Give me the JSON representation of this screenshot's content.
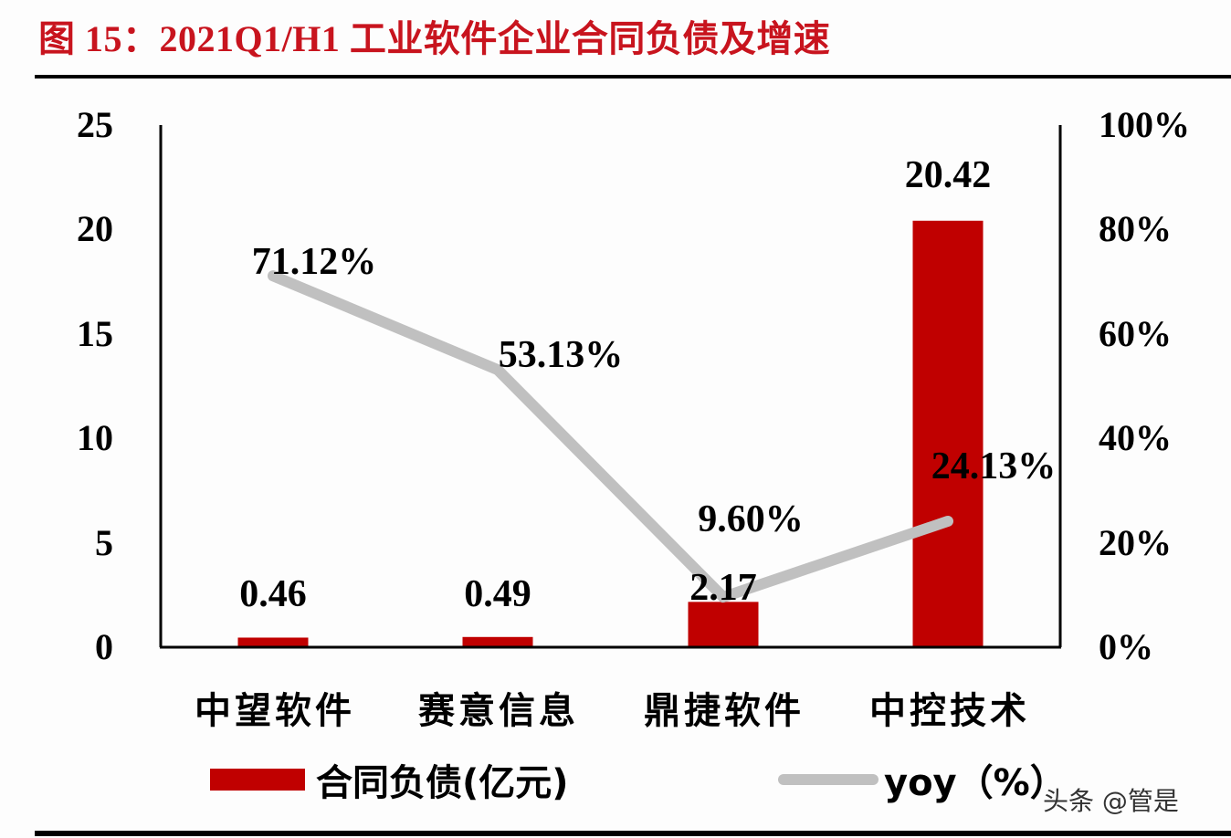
{
  "title": "图 15：2021Q1/H1 工业软件企业合同负债及增速",
  "colors": {
    "title": "#c8141e",
    "bar": "#c00000",
    "line": "#c0c0c0",
    "axis": "#000000"
  },
  "axes": {
    "left_ticks": [
      "0",
      "5",
      "10",
      "15",
      "20",
      "25"
    ],
    "right_ticks": [
      "0%",
      "20%",
      "40%",
      "60%",
      "80%",
      "100%"
    ]
  },
  "categories": [
    "中望软件",
    "赛意信息",
    "鼎捷软件",
    "中控技术"
  ],
  "bar_labels": [
    "0.46",
    "0.49",
    "2.17",
    "20.42"
  ],
  "line_labels": [
    "71.12%",
    "53.13%",
    "9.60%",
    "24.13%"
  ],
  "legend": {
    "bar": "合同负债(亿元)",
    "line": "yoy（%）"
  },
  "watermark": "头条 @管是",
  "chart_data": {
    "type": "bar",
    "title": "图 15：2021Q1/H1 工业软件企业合同负债及增速",
    "categories": [
      "中望软件",
      "赛意信息",
      "鼎捷软件",
      "中控技术"
    ],
    "series": [
      {
        "name": "合同负债(亿元)",
        "type": "bar",
        "axis": "left",
        "values": [
          0.46,
          0.49,
          2.17,
          20.42
        ]
      },
      {
        "name": "yoy（%）",
        "type": "line",
        "axis": "right",
        "values": [
          71.12,
          53.13,
          9.6,
          24.13
        ]
      }
    ],
    "xlabel": "",
    "ylabel": "",
    "ylim": [
      0,
      25
    ],
    "y2lim": [
      0,
      100
    ],
    "yticks": [
      0,
      5,
      10,
      15,
      20,
      25
    ],
    "y2ticks": [
      "0%",
      "20%",
      "40%",
      "60%",
      "80%",
      "100%"
    ],
    "grid": false,
    "legend_position": "bottom"
  }
}
